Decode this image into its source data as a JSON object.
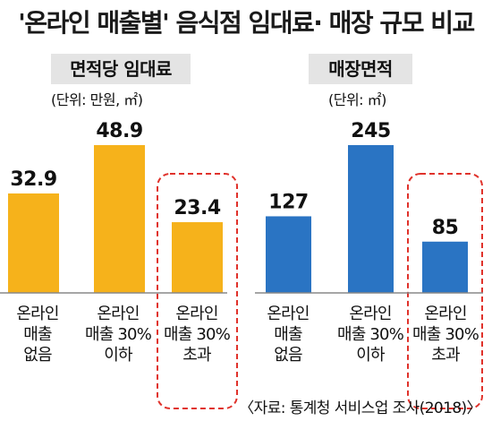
{
  "header": {
    "title": "'온라인 매출별' 음식점 임대료· 매장 규모 비교"
  },
  "panels": [
    {
      "label": "면적당 임대료",
      "unit": "(단위: 만원, ㎡)"
    },
    {
      "label": "매장면적",
      "unit": "(단위: ㎡)"
    }
  ],
  "source": "〈자료: 통계청 서비스업 조사(2018)〉",
  "colors": {
    "rent_bar": "#f6b21b",
    "area_bar": "#2a74c3",
    "highlight_box": "#e0322b",
    "baseline": "#888888"
  },
  "chart_data": [
    {
      "type": "bar",
      "title": "면적당 임대료",
      "unit": "(단위: 만원, ㎡)",
      "categories": [
        [
          "온라인",
          "매출",
          "없음"
        ],
        [
          "온라인",
          "매출 30%",
          "이하"
        ],
        [
          "온라인",
          "매출 30%",
          "초과"
        ]
      ],
      "values": [
        32.9,
        48.9,
        23.4
      ],
      "value_labels": [
        "32.9",
        "48.9",
        "23.4"
      ],
      "highlighted_category_index": 2,
      "grid": false
    },
    {
      "type": "bar",
      "title": "매장면적",
      "unit": "(단위: ㎡)",
      "categories": [
        [
          "온라인",
          "매출",
          "없음"
        ],
        [
          "온라인",
          "매출 30%",
          "이하"
        ],
        [
          "온라인",
          "매출 30%",
          "초과"
        ]
      ],
      "values": [
        127,
        245,
        85
      ],
      "value_labels": [
        "127",
        "245",
        "85"
      ],
      "highlighted_category_index": 2,
      "grid": false
    }
  ]
}
